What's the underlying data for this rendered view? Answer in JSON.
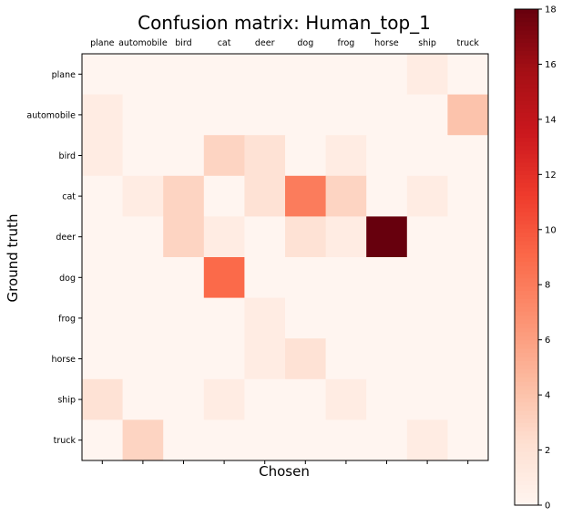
{
  "chart_data": {
    "type": "heatmap",
    "title": "Confusion matrix: Human_top_1",
    "xlabel": "Chosen",
    "ylabel": "Ground truth",
    "x_categories": [
      "plane",
      "automobile",
      "bird",
      "cat",
      "deer",
      "dog",
      "frog",
      "horse",
      "ship",
      "truck"
    ],
    "y_categories": [
      "plane",
      "automobile",
      "bird",
      "cat",
      "deer",
      "dog",
      "frog",
      "horse",
      "ship",
      "truck"
    ],
    "values": [
      [
        0,
        0,
        0,
        0,
        0,
        0,
        0,
        0,
        1,
        0
      ],
      [
        1,
        0,
        0,
        0,
        0,
        0,
        0,
        0,
        0,
        4
      ],
      [
        1,
        0,
        0,
        3,
        2,
        0,
        1,
        0,
        0,
        0
      ],
      [
        0,
        1,
        3,
        0,
        2,
        8,
        3,
        0,
        1,
        0
      ],
      [
        0,
        0,
        3,
        1,
        0,
        2,
        1,
        18,
        0,
        0
      ],
      [
        0,
        0,
        0,
        9,
        0,
        0,
        0,
        0,
        0,
        0
      ],
      [
        0,
        0,
        0,
        0,
        1,
        0,
        0,
        0,
        0,
        0
      ],
      [
        0,
        0,
        0,
        0,
        1,
        2,
        0,
        0,
        0,
        0
      ],
      [
        2,
        0,
        0,
        1,
        0,
        0,
        1,
        0,
        0,
        0
      ],
      [
        0,
        3,
        0,
        0,
        0,
        0,
        0,
        0,
        1,
        0
      ]
    ],
    "colormap": "Reds",
    "colorbar": {
      "min": 0,
      "max": 18,
      "ticks": [
        0,
        2,
        4,
        6,
        8,
        10,
        12,
        14,
        16,
        18
      ]
    },
    "x_axis_position": "top",
    "grid": false
  }
}
